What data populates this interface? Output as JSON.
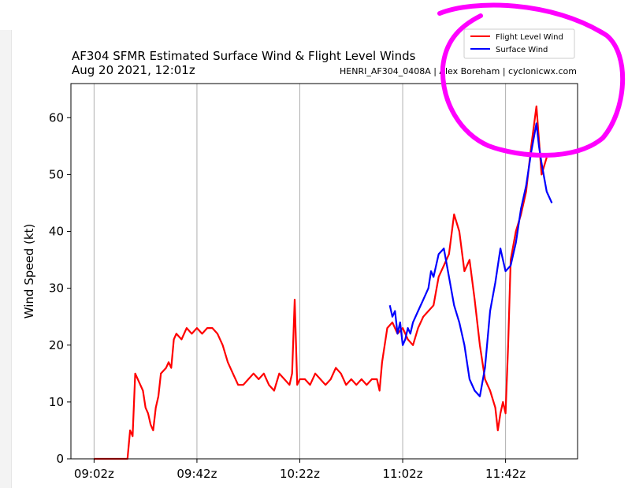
{
  "colors": {
    "flight_level": "#ff0000",
    "surface": "#0000ff",
    "annotation": "#ff00ff",
    "grid": "#b0b0b0"
  },
  "chart_data": {
    "type": "line",
    "title": "AF304 SFMR Estimated Surface Wind & Flight Level Winds",
    "subtitle": "Aug 20 2021, 12:01z",
    "source": "HENRI_AF304_0408A | Alex Boreham | cyclonicwx.com",
    "ylabel": "Wind Speed (kt)",
    "xlabel": "",
    "x_ticks": [
      "09:02z",
      "09:42z",
      "10:22z",
      "11:02z",
      "11:42z"
    ],
    "y_ticks": [
      "0",
      "10",
      "20",
      "30",
      "40",
      "50",
      "60"
    ],
    "ylim": [
      0,
      66
    ],
    "xlim": [
      "08:53z",
      "12:10z"
    ],
    "grid": "vertical only",
    "legend": "top-right",
    "series": [
      {
        "name": "Flight Level Wind",
        "color": "#ff0000",
        "x": [
          "09:02z",
          "09:15z",
          "09:16z",
          "09:17z",
          "09:18z",
          "09:20z",
          "09:21z",
          "09:22z",
          "09:23z",
          "09:24z",
          "09:25z",
          "09:26z",
          "09:27z",
          "09:28z",
          "09:30z",
          "09:31z",
          "09:32z",
          "09:33z",
          "09:34z",
          "09:36z",
          "09:38z",
          "09:40z",
          "09:42z",
          "09:44z",
          "09:46z",
          "09:48z",
          "09:50z",
          "09:52z",
          "09:54z",
          "09:56z",
          "09:58z",
          "10:00z",
          "10:02z",
          "10:04z",
          "10:06z",
          "10:08z",
          "10:10z",
          "10:12z",
          "10:14z",
          "10:16z",
          "10:18z",
          "10:19z",
          "10:20z",
          "10:21z",
          "10:22z",
          "10:24z",
          "10:26z",
          "10:28z",
          "10:30z",
          "10:32z",
          "10:34z",
          "10:36z",
          "10:38z",
          "10:40z",
          "10:42z",
          "10:44z",
          "10:46z",
          "10:48z",
          "10:50z",
          "10:52z",
          "10:53z",
          "10:54z",
          "10:56z",
          "10:58z",
          "11:00z",
          "11:02z",
          "11:04z",
          "11:06z",
          "11:08z",
          "11:10z",
          "11:12z",
          "11:14z",
          "11:16z",
          "11:18z",
          "11:20z",
          "11:22z",
          "11:24z",
          "11:26z",
          "11:28z",
          "11:30z",
          "11:32z",
          "11:34z",
          "11:36z",
          "11:38z",
          "11:39z",
          "11:40z",
          "11:41z",
          "11:42z",
          "11:43z",
          "11:44z",
          "11:46z",
          "11:48z",
          "11:50z",
          "11:52z",
          "11:54z",
          "11:56z",
          "11:58z"
        ],
        "values": [
          0,
          0,
          5,
          4,
          15,
          13,
          12,
          9,
          8,
          6,
          5,
          9,
          11,
          15,
          16,
          17,
          16,
          21,
          22,
          21,
          23,
          22,
          23,
          22,
          23,
          23,
          22,
          20,
          17,
          15,
          13,
          13,
          14,
          15,
          14,
          15,
          13,
          12,
          15,
          14,
          13,
          15,
          28,
          13,
          14,
          14,
          13,
          15,
          14,
          13,
          14,
          16,
          15,
          13,
          14,
          13,
          14,
          13,
          14,
          14,
          12,
          17,
          23,
          24,
          22,
          23,
          21,
          20,
          23,
          25,
          26,
          27,
          32,
          34,
          36,
          43,
          40,
          33,
          35,
          28,
          20,
          14,
          12,
          9,
          5,
          8,
          10,
          8,
          20,
          35,
          40,
          43,
          47,
          55,
          62,
          50,
          53
        ]
      },
      {
        "name": "Surface Wind",
        "color": "#0000ff",
        "x": [
          "10:57z",
          "10:58z",
          "10:59z",
          "11:00z",
          "11:01z",
          "11:02z",
          "11:03z",
          "11:04z",
          "11:05z",
          "11:06z",
          "11:08z",
          "11:10z",
          "11:12z",
          "11:13z",
          "11:14z",
          "11:16z",
          "11:18z",
          "11:20z",
          "11:22z",
          "11:24z",
          "11:26z",
          "11:28z",
          "11:30z",
          "11:32z",
          "11:34z",
          "11:36z",
          "11:38z",
          "11:40z",
          "11:41z",
          "11:42z",
          "11:44z",
          "11:46z",
          "11:48z",
          "11:50z",
          "11:52z",
          "11:54z",
          "11:55z",
          "11:56z",
          "11:58z",
          "12:00z"
        ],
        "values": [
          27,
          25,
          26,
          22,
          24,
          20,
          21,
          23,
          22,
          24,
          26,
          28,
          30,
          33,
          32,
          36,
          37,
          32,
          27,
          24,
          20,
          14,
          12,
          11,
          16,
          26,
          31,
          37,
          35,
          33,
          34,
          38,
          44,
          48,
          54,
          59,
          55,
          52,
          47,
          45
        ]
      }
    ]
  }
}
